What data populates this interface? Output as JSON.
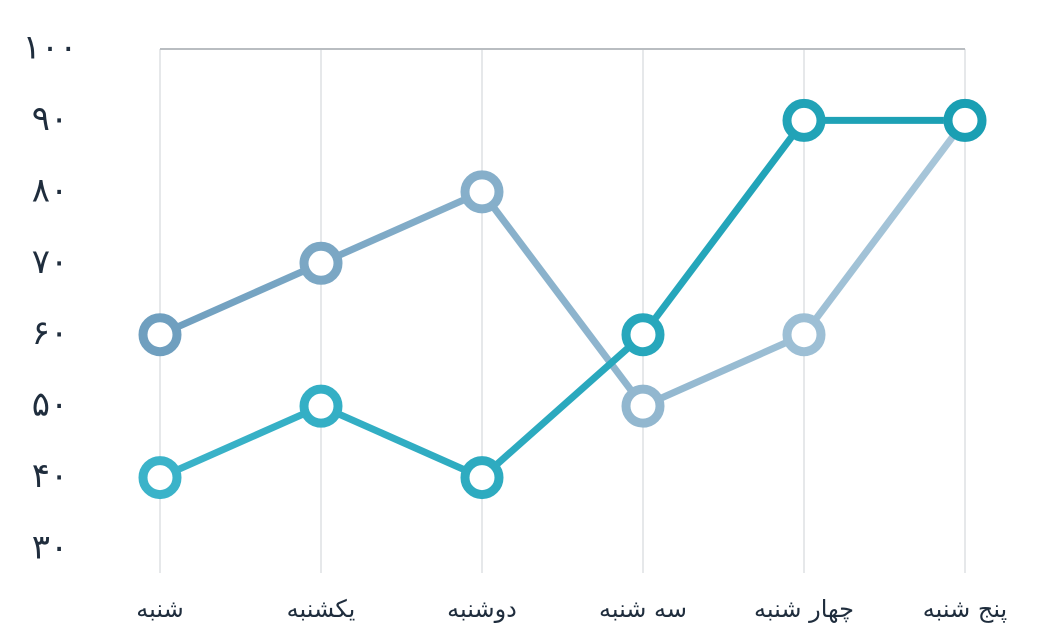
{
  "chart_data": {
    "type": "line",
    "categories": [
      "شنبه",
      "یکشنبه",
      "دوشنبه",
      "سه شنبه",
      "چهار شنبه",
      "پنج شنبه"
    ],
    "series": [
      {
        "values": [
          60,
          70,
          80,
          50,
          60,
          90
        ],
        "color": "#6f9fbf",
        "color_end": "#a9c7da"
      },
      {
        "values": [
          40,
          50,
          40,
          60,
          90,
          90
        ],
        "color": "#3bb3c9",
        "color_end": "#1a9fb3"
      }
    ],
    "ylim": [
      30,
      100
    ],
    "yticks": [
      "۳۰",
      "۴۰",
      "۵۰",
      "۶۰",
      "۷۰",
      "۸۰",
      "۹۰",
      "۱۰۰"
    ],
    "ytick_values": [
      30,
      40,
      50,
      60,
      70,
      80,
      90,
      100
    ],
    "grid": true,
    "legend": "none"
  }
}
